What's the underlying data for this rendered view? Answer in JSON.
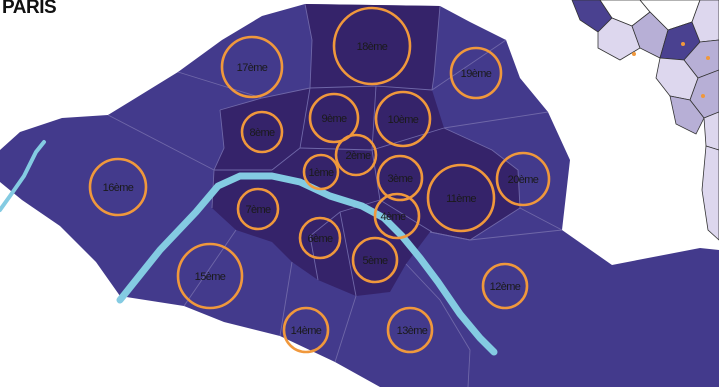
{
  "map": {
    "title": "PARIS",
    "colors": {
      "outer": "#433a8c",
      "inner": "#35236a",
      "border": "#6f67a8",
      "circle": "#f0983c",
      "river": "#84cbe2",
      "background": "#ffffff",
      "suburb_dark": "#4a4190",
      "suburb_light": "#b7afd6",
      "suburb_pale": "#ddd7ee"
    },
    "arrondissements": [
      {
        "label": "1ème",
        "ring": "inner"
      },
      {
        "label": "2ème",
        "ring": "inner"
      },
      {
        "label": "3ème",
        "ring": "inner"
      },
      {
        "label": "4ème",
        "ring": "inner"
      },
      {
        "label": "5ème",
        "ring": "inner"
      },
      {
        "label": "6ème",
        "ring": "inner"
      },
      {
        "label": "7ème",
        "ring": "inner"
      },
      {
        "label": "8ème",
        "ring": "inner"
      },
      {
        "label": "9ème",
        "ring": "inner"
      },
      {
        "label": "10ème",
        "ring": "inner"
      },
      {
        "label": "11ème",
        "ring": "inner"
      },
      {
        "label": "12ème",
        "ring": "outer"
      },
      {
        "label": "13ème",
        "ring": "outer"
      },
      {
        "label": "14ème",
        "ring": "outer"
      },
      {
        "label": "15ème",
        "ring": "outer"
      },
      {
        "label": "16ème",
        "ring": "outer"
      },
      {
        "label": "17ème",
        "ring": "outer"
      },
      {
        "label": "18ème",
        "ring": "inner"
      },
      {
        "label": "19ème",
        "ring": "outer"
      },
      {
        "label": "20ème",
        "ring": "outer"
      }
    ]
  }
}
